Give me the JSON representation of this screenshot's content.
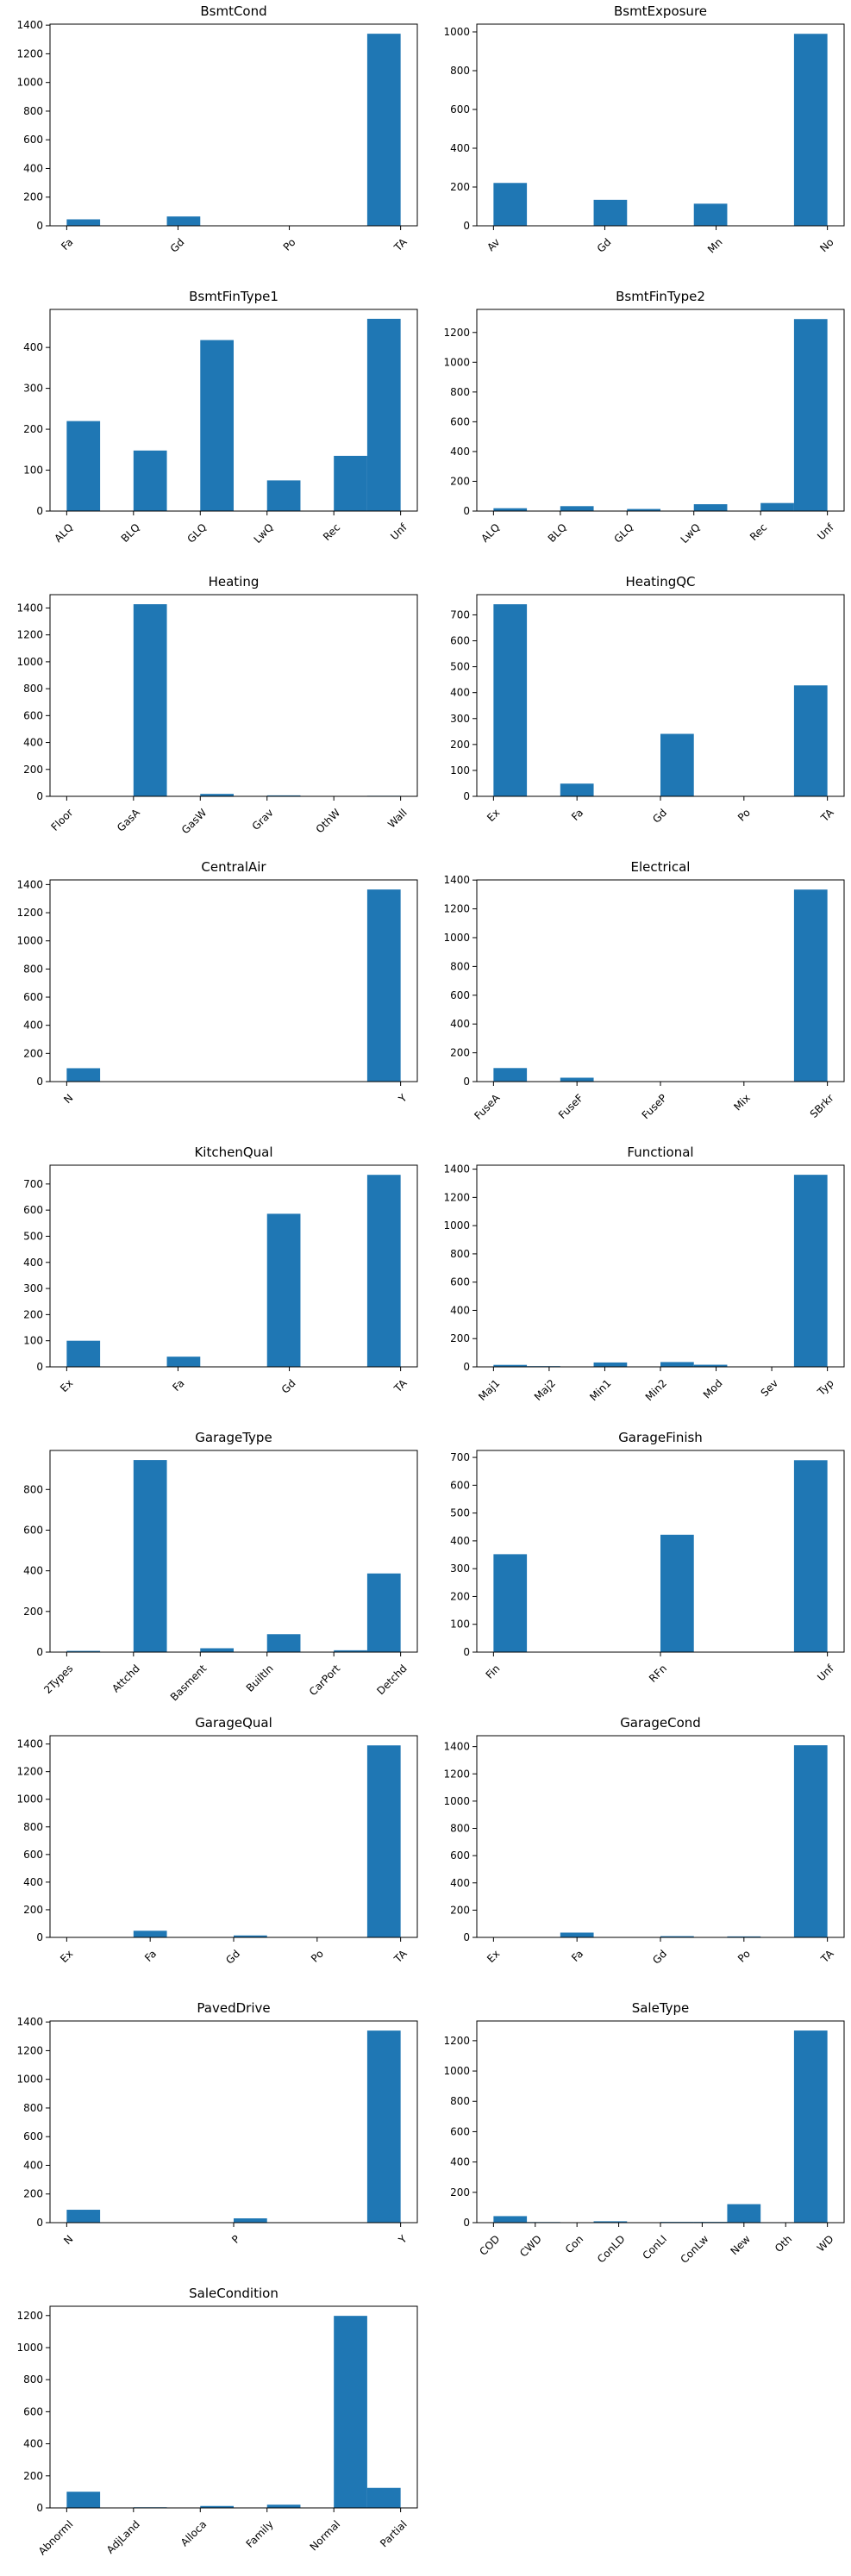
{
  "chart_data": [
    {
      "type": "histogram",
      "title": "BsmtCond",
      "color": "#1f77b4",
      "bins": [
        0,
        0.3,
        0.6,
        0.9,
        1.2,
        1.5,
        1.8,
        2.1,
        2.4,
        2.7,
        3
      ],
      "counts": [
        45,
        0,
        0,
        65,
        0,
        0,
        2,
        0,
        0,
        1340
      ],
      "xlim": [
        -0.15,
        3.15
      ],
      "xticks": [
        {
          "value": 0,
          "label": "Fa"
        },
        {
          "value": 1,
          "label": "Gd"
        },
        {
          "value": 2,
          "label": "Po"
        },
        {
          "value": 3,
          "label": "TA"
        }
      ],
      "ylim": [
        0,
        1407
      ],
      "yticks": [
        0,
        200,
        400,
        600,
        800,
        1000,
        1200,
        1400
      ]
    },
    {
      "type": "histogram",
      "title": "BsmtExposure",
      "color": "#1f77b4",
      "bins": [
        0,
        0.3,
        0.6,
        0.9,
        1.2,
        1.5,
        1.8,
        2.1,
        2.4,
        2.7,
        3
      ],
      "counts": [
        221,
        0,
        0,
        134,
        0,
        0,
        114,
        0,
        0,
        990
      ],
      "xlim": [
        -0.15,
        3.15
      ],
      "xticks": [
        {
          "value": 0,
          "label": "Av"
        },
        {
          "value": 1,
          "label": "Gd"
        },
        {
          "value": 2,
          "label": "Mn"
        },
        {
          "value": 3,
          "label": "No"
        }
      ],
      "ylim": [
        0,
        1040
      ],
      "yticks": [
        0,
        200,
        400,
        600,
        800,
        1000
      ]
    },
    {
      "type": "histogram",
      "title": "BsmtFinType1",
      "color": "#1f77b4",
      "bins": [
        0,
        0.5,
        1,
        1.5,
        2,
        2.5,
        3,
        3.5,
        4,
        4.5,
        5
      ],
      "counts": [
        220,
        0,
        148,
        0,
        418,
        0,
        75,
        0,
        135,
        470
      ],
      "xlim": [
        -0.25,
        5.25
      ],
      "xticks": [
        {
          "value": 0,
          "label": "ALQ"
        },
        {
          "value": 1,
          "label": "BLQ"
        },
        {
          "value": 2,
          "label": "GLQ"
        },
        {
          "value": 3,
          "label": "LwQ"
        },
        {
          "value": 4,
          "label": "Rec"
        },
        {
          "value": 5,
          "label": "Unf"
        }
      ],
      "ylim": [
        0,
        493
      ],
      "yticks": [
        0,
        100,
        200,
        300,
        400
      ]
    },
    {
      "type": "histogram",
      "title": "BsmtFinType2",
      "color": "#1f77b4",
      "bins": [
        0,
        0.5,
        1,
        1.5,
        2,
        2.5,
        3,
        3.5,
        4,
        4.5,
        5
      ],
      "counts": [
        19,
        0,
        33,
        0,
        14,
        0,
        46,
        0,
        54,
        1290
      ],
      "xlim": [
        -0.25,
        5.25
      ],
      "xticks": [
        {
          "value": 0,
          "label": "ALQ"
        },
        {
          "value": 1,
          "label": "BLQ"
        },
        {
          "value": 2,
          "label": "GLQ"
        },
        {
          "value": 3,
          "label": "LwQ"
        },
        {
          "value": 4,
          "label": "Rec"
        },
        {
          "value": 5,
          "label": "Unf"
        }
      ],
      "ylim": [
        0,
        1355
      ],
      "yticks": [
        0,
        200,
        400,
        600,
        800,
        1000,
        1200
      ]
    },
    {
      "type": "histogram",
      "title": "Heating",
      "color": "#1f77b4",
      "bins": [
        0,
        0.5,
        1,
        1.5,
        2,
        2.5,
        3,
        3.5,
        4,
        4.5,
        5
      ],
      "counts": [
        1,
        0,
        1428,
        0,
        18,
        0,
        7,
        0,
        2,
        4
      ],
      "xlim": [
        -0.25,
        5.25
      ],
      "xticks": [
        {
          "value": 0,
          "label": "Floor"
        },
        {
          "value": 1,
          "label": "GasA"
        },
        {
          "value": 2,
          "label": "GasW"
        },
        {
          "value": 3,
          "label": "Grav"
        },
        {
          "value": 4,
          "label": "OthW"
        },
        {
          "value": 5,
          "label": "Wall"
        }
      ],
      "ylim": [
        0,
        1499
      ],
      "yticks": [
        0,
        200,
        400,
        600,
        800,
        1000,
        1200,
        1400
      ]
    },
    {
      "type": "histogram",
      "title": "HeatingQC",
      "color": "#1f77b4",
      "bins": [
        0,
        0.4,
        0.8,
        1.2,
        1.6,
        2,
        2.4,
        2.8,
        3.2,
        3.6,
        4
      ],
      "counts": [
        741,
        0,
        49,
        0,
        0,
        241,
        0,
        1,
        0,
        428
      ],
      "xlim": [
        -0.2,
        4.2
      ],
      "xticks": [
        {
          "value": 0,
          "label": "Ex"
        },
        {
          "value": 1,
          "label": "Fa"
        },
        {
          "value": 2,
          "label": "Gd"
        },
        {
          "value": 3,
          "label": "Po"
        },
        {
          "value": 4,
          "label": "TA"
        }
      ],
      "ylim": [
        0,
        778
      ],
      "yticks": [
        0,
        100,
        200,
        300,
        400,
        500,
        600,
        700
      ]
    },
    {
      "type": "histogram",
      "title": "CentralAir",
      "color": "#1f77b4",
      "bins": [
        0,
        0.1,
        0.2,
        0.3,
        0.4,
        0.5,
        0.6,
        0.7,
        0.8,
        0.9,
        1
      ],
      "counts": [
        95,
        0,
        0,
        0,
        0,
        0,
        0,
        0,
        0,
        1365
      ],
      "xlim": [
        -0.05,
        1.05
      ],
      "xticks": [
        {
          "value": 0,
          "label": "N"
        },
        {
          "value": 1,
          "label": "Y"
        }
      ],
      "ylim": [
        0,
        1433
      ],
      "yticks": [
        0,
        200,
        400,
        600,
        800,
        1000,
        1200,
        1400
      ]
    },
    {
      "type": "histogram",
      "title": "Electrical",
      "color": "#1f77b4",
      "bins": [
        0,
        0.4,
        0.8,
        1.2,
        1.6,
        2,
        2.4,
        2.8,
        3.2,
        3.6,
        4
      ],
      "counts": [
        94,
        0,
        27,
        0,
        0,
        3,
        0,
        1,
        0,
        1334
      ],
      "xlim": [
        -0.2,
        4.2
      ],
      "xticks": [
        {
          "value": 0,
          "label": "FuseA"
        },
        {
          "value": 1,
          "label": "FuseF"
        },
        {
          "value": 2,
          "label": "FuseP"
        },
        {
          "value": 3,
          "label": "Mix"
        },
        {
          "value": 4,
          "label": "SBrkr"
        }
      ],
      "ylim": [
        0,
        1401
      ],
      "yticks": [
        0,
        200,
        400,
        600,
        800,
        1000,
        1200,
        1400
      ]
    },
    {
      "type": "histogram",
      "title": "KitchenQual",
      "color": "#1f77b4",
      "bins": [
        0,
        0.3,
        0.6,
        0.9,
        1.2,
        1.5,
        1.8,
        2.1,
        2.4,
        2.7,
        3
      ],
      "counts": [
        100,
        0,
        0,
        39,
        0,
        0,
        586,
        0,
        0,
        735
      ],
      "xlim": [
        -0.15,
        3.15
      ],
      "xticks": [
        {
          "value": 0,
          "label": "Ex"
        },
        {
          "value": 1,
          "label": "Fa"
        },
        {
          "value": 2,
          "label": "Gd"
        },
        {
          "value": 3,
          "label": "TA"
        }
      ],
      "ylim": [
        0,
        772
      ],
      "yticks": [
        0,
        100,
        200,
        300,
        400,
        500,
        600,
        700
      ]
    },
    {
      "type": "histogram",
      "title": "Functional",
      "color": "#1f77b4",
      "bins": [
        0,
        0.6,
        1.2,
        1.8,
        2.4,
        3,
        3.6,
        4.2,
        4.8,
        5.4,
        6
      ],
      "counts": [
        14,
        5,
        0,
        31,
        0,
        34,
        15,
        0,
        1,
        1360
      ],
      "xlim": [
        -0.3,
        6.3
      ],
      "xticks": [
        {
          "value": 0,
          "label": "Maj1"
        },
        {
          "value": 1,
          "label": "Maj2"
        },
        {
          "value": 2,
          "label": "Min1"
        },
        {
          "value": 3,
          "label": "Min2"
        },
        {
          "value": 4,
          "label": "Mod"
        },
        {
          "value": 5,
          "label": "Sev"
        },
        {
          "value": 6,
          "label": "Typ"
        }
      ],
      "ylim": [
        0,
        1428
      ],
      "yticks": [
        0,
        200,
        400,
        600,
        800,
        1000,
        1200,
        1400
      ]
    },
    {
      "type": "histogram",
      "title": "GarageType",
      "color": "#1f77b4",
      "bins": [
        0,
        0.5,
        1,
        1.5,
        2,
        2.5,
        3,
        3.5,
        4,
        4.5,
        5
      ],
      "counts": [
        6,
        0,
        945,
        0,
        19,
        0,
        88,
        0,
        9,
        387
      ],
      "xlim": [
        -0.25,
        5.25
      ],
      "xticks": [
        {
          "value": 0,
          "label": "2Types"
        },
        {
          "value": 1,
          "label": "Attchd"
        },
        {
          "value": 2,
          "label": "Basment"
        },
        {
          "value": 3,
          "label": "BuiltIn"
        },
        {
          "value": 4,
          "label": "CarPort"
        },
        {
          "value": 5,
          "label": "Detchd"
        }
      ],
      "ylim": [
        0,
        992
      ],
      "yticks": [
        0,
        200,
        400,
        600,
        800
      ]
    },
    {
      "type": "histogram",
      "title": "GarageFinish",
      "color": "#1f77b4",
      "bins": [
        0,
        0.2,
        0.4,
        0.6,
        0.8,
        1,
        1.2,
        1.4,
        1.6,
        1.8,
        2
      ],
      "counts": [
        352,
        0,
        0,
        0,
        0,
        422,
        0,
        0,
        0,
        690
      ],
      "xlim": [
        -0.1,
        2.1
      ],
      "xticks": [
        {
          "value": 0,
          "label": "Fin"
        },
        {
          "value": 1,
          "label": "RFn"
        },
        {
          "value": 2,
          "label": "Unf"
        }
      ],
      "ylim": [
        0,
        725
      ],
      "yticks": [
        0,
        100,
        200,
        300,
        400,
        500,
        600,
        700
      ]
    },
    {
      "type": "histogram",
      "title": "GarageQual",
      "color": "#1f77b4",
      "bins": [
        0,
        0.4,
        0.8,
        1.2,
        1.6,
        2,
        2.4,
        2.8,
        3.2,
        3.6,
        4
      ],
      "counts": [
        3,
        0,
        48,
        0,
        0,
        14,
        0,
        3,
        0,
        1390
      ],
      "xlim": [
        -0.2,
        4.2
      ],
      "xticks": [
        {
          "value": 0,
          "label": "Ex"
        },
        {
          "value": 1,
          "label": "Fa"
        },
        {
          "value": 2,
          "label": "Gd"
        },
        {
          "value": 3,
          "label": "Po"
        },
        {
          "value": 4,
          "label": "TA"
        }
      ],
      "ylim": [
        0,
        1460
      ],
      "yticks": [
        0,
        200,
        400,
        600,
        800,
        1000,
        1200,
        1400
      ]
    },
    {
      "type": "histogram",
      "title": "GarageCond",
      "color": "#1f77b4",
      "bins": [
        0,
        0.4,
        0.8,
        1.2,
        1.6,
        2,
        2.4,
        2.8,
        3.2,
        3.6,
        4
      ],
      "counts": [
        2,
        0,
        35,
        0,
        0,
        9,
        0,
        7,
        0,
        1410
      ],
      "xlim": [
        -0.2,
        4.2
      ],
      "xticks": [
        {
          "value": 0,
          "label": "Ex"
        },
        {
          "value": 1,
          "label": "Fa"
        },
        {
          "value": 2,
          "label": "Gd"
        },
        {
          "value": 3,
          "label": "Po"
        },
        {
          "value": 4,
          "label": "TA"
        }
      ],
      "ylim": [
        0,
        1480
      ],
      "yticks": [
        0,
        200,
        400,
        600,
        800,
        1000,
        1200,
        1400
      ]
    },
    {
      "type": "histogram",
      "title": "PavedDrive",
      "color": "#1f77b4",
      "bins": [
        0,
        0.2,
        0.4,
        0.6,
        0.8,
        1,
        1.2,
        1.4,
        1.6,
        1.8,
        2
      ],
      "counts": [
        90,
        0,
        0,
        0,
        0,
        30,
        0,
        0,
        0,
        1340
      ],
      "xlim": [
        -0.1,
        2.1
      ],
      "xticks": [
        {
          "value": 0,
          "label": "N"
        },
        {
          "value": 1,
          "label": "P"
        },
        {
          "value": 2,
          "label": "Y"
        }
      ],
      "ylim": [
        0,
        1407
      ],
      "yticks": [
        0,
        200,
        400,
        600,
        800,
        1000,
        1200,
        1400
      ]
    },
    {
      "type": "histogram",
      "title": "SaleType",
      "color": "#1f77b4",
      "bins": [
        0,
        0.8,
        1.6,
        2.4,
        3.2,
        4,
        4.8,
        5.6,
        6.4,
        7.2,
        8
      ],
      "counts": [
        43,
        4,
        2,
        9,
        0,
        5,
        5,
        122,
        3,
        1267
      ],
      "xlim": [
        -0.4,
        8.4
      ],
      "xticks": [
        {
          "value": 0,
          "label": "COD"
        },
        {
          "value": 1,
          "label": "CWD"
        },
        {
          "value": 2,
          "label": "Con"
        },
        {
          "value": 3,
          "label": "ConLD"
        },
        {
          "value": 4,
          "label": "ConLI"
        },
        {
          "value": 5,
          "label": "ConLw"
        },
        {
          "value": 6,
          "label": "New"
        },
        {
          "value": 7,
          "label": "Oth"
        },
        {
          "value": 8,
          "label": "WD"
        }
      ],
      "ylim": [
        0,
        1330
      ],
      "yticks": [
        0,
        200,
        400,
        600,
        800,
        1000,
        1200
      ]
    },
    {
      "type": "histogram",
      "title": "SaleCondition",
      "color": "#1f77b4",
      "bins": [
        0,
        0.5,
        1,
        1.5,
        2,
        2.5,
        3,
        3.5,
        4,
        4.5,
        5
      ],
      "counts": [
        101,
        0,
        4,
        0,
        12,
        0,
        20,
        0,
        1198,
        125
      ],
      "xlim": [
        -0.25,
        5.25
      ],
      "xticks": [
        {
          "value": 0,
          "label": "Abnorml"
        },
        {
          "value": 1,
          "label": "AdjLand"
        },
        {
          "value": 2,
          "label": "Alloca"
        },
        {
          "value": 3,
          "label": "Family"
        },
        {
          "value": 4,
          "label": "Normal"
        },
        {
          "value": 5,
          "label": "Partial"
        }
      ],
      "ylim": [
        0,
        1258
      ],
      "yticks": [
        0,
        200,
        400,
        600,
        800,
        1000,
        1200
      ]
    }
  ]
}
